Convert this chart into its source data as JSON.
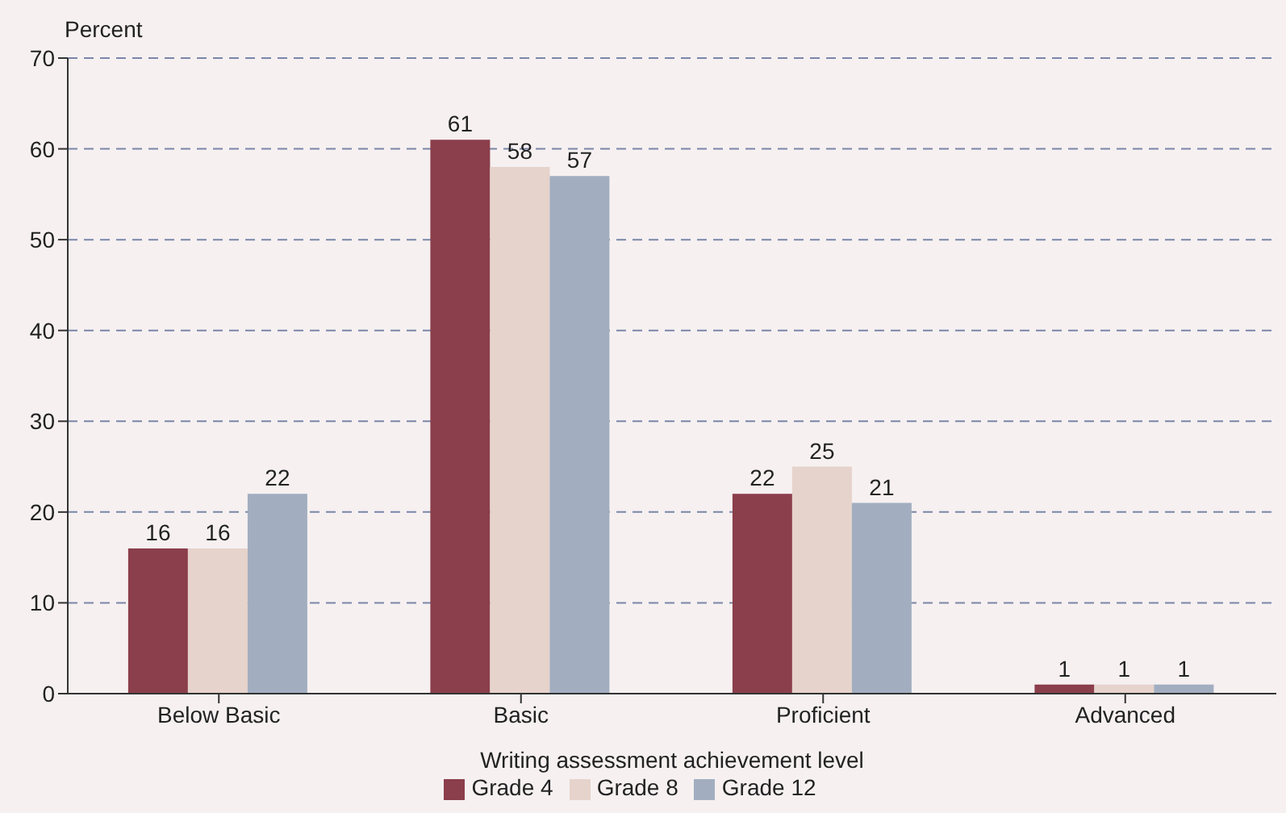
{
  "chart_data": {
    "type": "bar",
    "xlabel": "Writing assessment achievement level",
    "ylabel": "Percent",
    "categories": [
      "Below Basic",
      "Basic",
      "Proficient",
      "Advanced"
    ],
    "series": [
      {
        "name": "Grade 4",
        "color": "#8b3e4b",
        "values": [
          16,
          61,
          22,
          1
        ]
      },
      {
        "name": "Grade 8",
        "color": "#e6d3cb",
        "values": [
          16,
          58,
          25,
          1
        ]
      },
      {
        "name": "Grade 12",
        "color": "#a2aec0",
        "values": [
          22,
          57,
          21,
          1
        ]
      }
    ],
    "ylim": [
      0,
      70
    ],
    "yticks": [
      0,
      10,
      20,
      30,
      40,
      50,
      60,
      70
    ],
    "grid": "y",
    "legend": "bottom",
    "data_labels": true
  }
}
